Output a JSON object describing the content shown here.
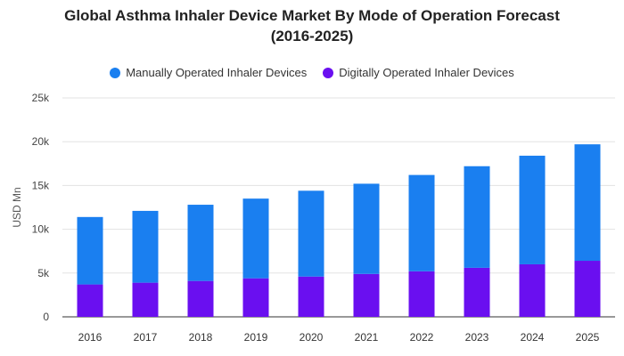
{
  "chart_data": {
    "type": "bar",
    "stacked": true,
    "title_line1": "Global Asthma Inhaler Device Market By Mode of Operation Forecast",
    "title_line2": "(2016-2025)",
    "xlabel": "",
    "ylabel": "USD Mn",
    "ylim": [
      0,
      25000
    ],
    "yticks": [
      0,
      5000,
      10000,
      15000,
      20000,
      25000
    ],
    "ytick_labels": [
      "0",
      "5k",
      "10k",
      "15k",
      "20k",
      "25k"
    ],
    "categories": [
      "2016",
      "2017",
      "2018",
      "2019",
      "2020",
      "2021",
      "2022",
      "2023",
      "2024",
      "2025"
    ],
    "series": [
      {
        "name": "Digitally Operated Inhaler Devices",
        "color": "#6a0ff0",
        "values": [
          3700,
          3900,
          4100,
          4400,
          4600,
          4900,
          5200,
          5600,
          6000,
          6400
        ]
      },
      {
        "name": "Manually Operated Inhaler Devices",
        "color": "#1a7ff0",
        "values": [
          7700,
          8200,
          8700,
          9100,
          9800,
          10300,
          11000,
          11600,
          12400,
          13300
        ]
      }
    ],
    "grid": true,
    "legend_position": "top"
  }
}
